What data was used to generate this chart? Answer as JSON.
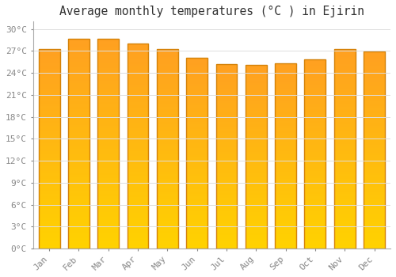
{
  "title": "Average monthly temperatures (°C ) in Ejirin",
  "months": [
    "Jan",
    "Feb",
    "Mar",
    "Apr",
    "May",
    "Jun",
    "Jul",
    "Aug",
    "Sep",
    "Oct",
    "Nov",
    "Dec"
  ],
  "temperatures": [
    27.3,
    28.7,
    28.6,
    28.0,
    27.2,
    26.1,
    25.2,
    25.1,
    25.3,
    25.8,
    27.2,
    26.9
  ],
  "ylim": [
    0,
    31
  ],
  "yticks": [
    0,
    3,
    6,
    9,
    12,
    15,
    18,
    21,
    24,
    27,
    30
  ],
  "ytick_labels": [
    "0°C",
    "3°C",
    "6°C",
    "9°C",
    "12°C",
    "15°C",
    "18°C",
    "21°C",
    "24°C",
    "27°C",
    "30°C"
  ],
  "bar_color_bottom": "#FFD200",
  "bar_color_top": "#FFA020",
  "bar_edge_color": "#D4820A",
  "background_color": "#FFFFFF",
  "grid_color": "#DDDDDD",
  "title_fontsize": 10.5,
  "tick_fontsize": 8,
  "font_family": "monospace"
}
